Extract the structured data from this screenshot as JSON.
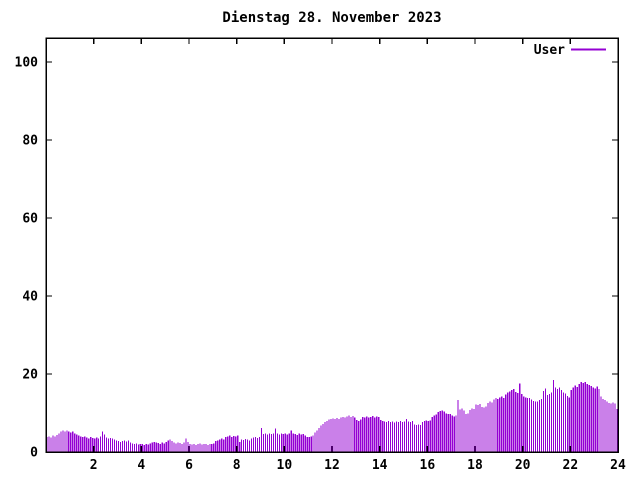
{
  "window": {
    "background": "#ffffff"
  },
  "chart_data": {
    "type": "bar",
    "title": "Dienstag 28. November 2023",
    "xlabel": "",
    "ylabel": "",
    "grid": false,
    "legend_position": "top-right",
    "bar_color": "#9400d3",
    "border_color": "#000000",
    "text_color": "#000000",
    "x_axis": {
      "min": 0,
      "max": 24,
      "tick_step": 2,
      "tick_labels": [
        "2",
        "4",
        "6",
        "8",
        "10",
        "12",
        "14",
        "16",
        "18",
        "20",
        "22",
        "24"
      ]
    },
    "y_axis": {
      "min": 0,
      "max": 106,
      "tick_step": 20,
      "tick_labels": [
        "0",
        "20",
        "40",
        "60",
        "80",
        "100"
      ]
    },
    "interval_minutes": 5,
    "legend": [
      {
        "name": "User",
        "color": "#9400d3"
      }
    ],
    "series": [
      {
        "name": "User",
        "values": [
          3.8,
          4.0,
          3.7,
          4.2,
          4.0,
          4.3,
          4.8,
          5.2,
          5.5,
          5.3,
          5.5,
          5.2,
          5.0,
          5.3,
          4.8,
          4.5,
          4.2,
          4.0,
          3.8,
          4.0,
          3.7,
          3.5,
          3.8,
          3.6,
          3.5,
          3.7,
          3.4,
          4.0,
          5.2,
          4.5,
          3.7,
          3.5,
          3.6,
          3.4,
          3.2,
          3.0,
          2.8,
          2.6,
          2.8,
          3.0,
          2.7,
          2.9,
          2.5,
          2.2,
          2.0,
          2.2,
          1.9,
          2.1,
          2.0,
          1.8,
          2.1,
          1.9,
          2.2,
          2.4,
          2.6,
          2.5,
          2.3,
          2.1,
          2.4,
          2.2,
          2.6,
          3.0,
          3.2,
          2.8,
          2.4,
          2.2,
          2.5,
          2.3,
          2.1,
          2.4,
          3.4,
          2.6,
          2.0,
          1.9,
          2.1,
          1.8,
          2.0,
          2.2,
          1.9,
          2.1,
          2.0,
          1.8,
          2.1,
          2.0,
          2.2,
          2.8,
          3.0,
          3.2,
          3.4,
          3.2,
          3.9,
          4.0,
          4.2,
          3.9,
          4.1,
          4.0,
          4.2,
          2.6,
          3.2,
          3.1,
          3.3,
          3.2,
          3.0,
          3.5,
          3.7,
          3.9,
          3.6,
          3.8,
          6.2,
          4.6,
          4.8,
          4.5,
          4.7,
          4.6,
          4.8,
          6.0,
          4.7,
          4.5,
          4.8,
          4.6,
          4.7,
          4.5,
          4.8,
          5.5,
          4.7,
          4.6,
          4.4,
          4.7,
          4.5,
          4.6,
          4.2,
          3.9,
          3.8,
          4.0,
          4.2,
          5.0,
          5.5,
          6.2,
          6.8,
          7.2,
          7.7,
          8.0,
          8.3,
          8.5,
          8.6,
          8.4,
          8.7,
          8.5,
          8.8,
          9.0,
          8.8,
          9.1,
          9.3,
          9.0,
          9.2,
          8.9,
          8.2,
          8.0,
          8.3,
          9.0,
          8.8,
          9.1,
          8.9,
          9.0,
          9.2,
          8.9,
          9.1,
          9.0,
          8.2,
          8.0,
          7.8,
          7.7,
          7.9,
          7.7,
          7.8,
          7.6,
          7.8,
          7.7,
          7.9,
          7.7,
          7.8,
          8.5,
          7.8,
          7.7,
          7.9,
          7.0,
          6.9,
          7.1,
          6.9,
          7.7,
          7.9,
          8.1,
          7.9,
          8.1,
          9.0,
          9.4,
          9.6,
          10.2,
          10.5,
          10.7,
          10.4,
          9.9,
          9.7,
          9.8,
          9.3,
          9.1,
          9.4,
          13.3,
          10.9,
          11.1,
          10.7,
          9.8,
          9.9,
          10.8,
          11.2,
          11.0,
          12.2,
          12.0,
          12.3,
          11.6,
          11.4,
          11.7,
          12.6,
          12.9,
          12.7,
          13.5,
          13.8,
          13.6,
          14.0,
          14.2,
          13.9,
          14.8,
          15.2,
          15.5,
          15.9,
          16.2,
          15.4,
          15.1,
          17.6,
          14.9,
          14.2,
          14.0,
          13.9,
          13.8,
          13.4,
          13.1,
          12.9,
          13.0,
          13.3,
          13.6,
          15.6,
          16.3,
          14.6,
          14.9,
          15.2,
          18.4,
          16.5,
          16.2,
          16.6,
          15.9,
          15.3,
          15.0,
          14.3,
          14.0,
          15.9,
          16.5,
          17.0,
          16.7,
          17.4,
          18.0,
          17.7,
          17.9,
          17.5,
          17.2,
          16.9,
          16.6,
          16.3,
          16.8,
          16.1,
          14.2,
          13.6,
          13.3,
          12.9,
          12.6,
          12.4,
          12.7,
          12.5,
          11.0
        ]
      }
    ]
  }
}
